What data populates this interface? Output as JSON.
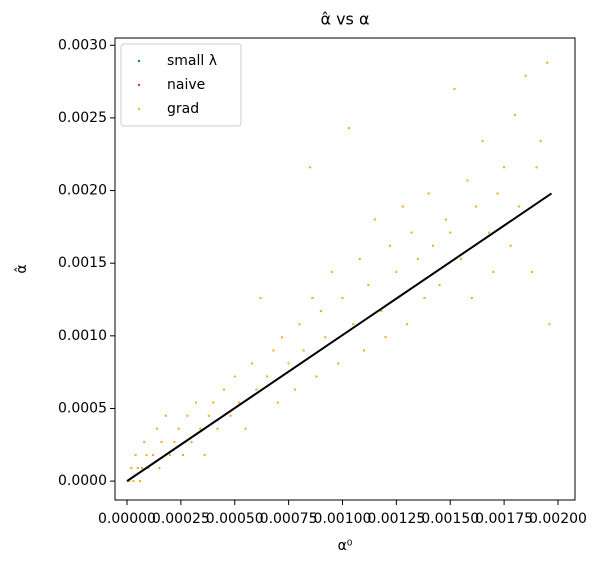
{
  "chart_data": {
    "type": "scatter",
    "title": "α̂ vs α",
    "xlabel": "α⁰",
    "ylabel": "α̂",
    "x": [
      1e-05,
      2e-05,
      3e-05,
      4e-05,
      5e-05,
      6e-05,
      7e-05,
      8e-05,
      9e-05,
      0.0001,
      0.00012,
      0.00014,
      0.00015,
      0.00016,
      0.00018,
      0.0002,
      0.00022,
      0.00024,
      0.00026,
      0.00028,
      0.0003,
      0.00032,
      0.00034,
      0.00036,
      0.00038,
      0.0004,
      0.00042,
      0.00045,
      0.00048,
      0.0005,
      0.00052,
      0.00055,
      0.00058,
      0.0006,
      0.00062,
      0.00065,
      0.00068,
      0.0007,
      0.00072,
      0.00075,
      0.00078,
      0.0008,
      0.00082,
      0.00085,
      0.00086,
      0.00088,
      0.0009,
      0.00092,
      0.00095,
      0.00098,
      0.001,
      0.00103,
      0.00105,
      0.00108,
      0.0011,
      0.00112,
      0.00115,
      0.00118,
      0.0012,
      0.00122,
      0.00125,
      0.00128,
      0.0013,
      0.00132,
      0.00135,
      0.00138,
      0.0014,
      0.00142,
      0.00145,
      0.00148,
      0.0015,
      0.00152,
      0.00155,
      0.00158,
      0.0016,
      0.00162,
      0.00165,
      0.00168,
      0.0017,
      0.00172,
      0.00175,
      0.00178,
      0.0018,
      0.00182,
      0.00185,
      0.00188,
      0.0019,
      0.00192,
      0.00195,
      0.00196
    ],
    "series": [
      {
        "name": "small λ",
        "color": "#1f77b4",
        "values": [
          0,
          9e-05,
          0,
          0.00018,
          9e-05,
          0,
          9e-05,
          0.00027,
          0.00018,
          9e-05,
          0.00018,
          0.00036,
          9e-05,
          0.00027,
          0.00045,
          0.00018,
          0.00027,
          0.00036,
          0.00018,
          0.00045,
          0.00027,
          0.00054,
          0.00036,
          0.00018,
          0.00045,
          0.00054,
          0.00036,
          0.00063,
          0.00045,
          0.00072,
          0.00054,
          0.00036,
          0.00081,
          0.00063,
          0.00126,
          0.00072,
          0.0009,
          0.00054,
          0.00099,
          0.00081,
          0.00063,
          0.00108,
          0.0009,
          0.00216,
          0.00126,
          0.00072,
          0.00117,
          0.00099,
          0.00144,
          0.00081,
          0.00126,
          0.00243,
          0.00108,
          0.00153,
          0.0009,
          0.00135,
          0.0018,
          0.00117,
          0.00099,
          0.00162,
          0.00144,
          0.00189,
          0.00108,
          0.00171,
          0.00153,
          0.00126,
          0.00198,
          0.00162,
          0.00135,
          0.0018,
          0.00171,
          0.0027,
          0.00153,
          0.00207,
          0.00126,
          0.00189,
          0.00234,
          0.00171,
          0.00144,
          0.00198,
          0.00216,
          0.00162,
          0.00252,
          0.00189,
          0.00279,
          0.00144,
          0.00216,
          0.00234,
          0.00288,
          0.00108
        ]
      },
      {
        "name": "naive",
        "color": "#e8322a",
        "values": [
          0,
          9e-05,
          0,
          0.00018,
          9e-05,
          0,
          9e-05,
          0.00027,
          0.00018,
          9e-05,
          0.00018,
          0.00036,
          9e-05,
          0.00027,
          0.00045,
          0.00018,
          0.00027,
          0.00036,
          0.00018,
          0.00045,
          0.00027,
          0.00054,
          0.00036,
          0.00018,
          0.00045,
          0.00054,
          0.00036,
          0.00063,
          0.00045,
          0.00072,
          0.00054,
          0.00036,
          0.00081,
          0.00063,
          0.00126,
          0.00072,
          0.0009,
          0.00054,
          0.00099,
          0.00081,
          0.00063,
          0.00108,
          0.0009,
          0.00216,
          0.00126,
          0.00072,
          0.00117,
          0.00099,
          0.00144,
          0.00081,
          0.00126,
          0.00243,
          0.00108,
          0.00153,
          0.0009,
          0.00135,
          0.0018,
          0.00117,
          0.00099,
          0.00162,
          0.00144,
          0.00189,
          0.00108,
          0.00171,
          0.00153,
          0.00126,
          0.00198,
          0.00162,
          0.00135,
          0.0018,
          0.00171,
          0.0027,
          0.00153,
          0.00207,
          0.00126,
          0.00189,
          0.00234,
          0.00171,
          0.00144,
          0.00198,
          0.00216,
          0.00162,
          0.00252,
          0.00189,
          0.00279,
          0.00144,
          0.00216,
          0.00234,
          0.00288,
          0.00108
        ]
      },
      {
        "name": "grad",
        "color": "#ffbf00",
        "values": [
          0,
          9e-05,
          0,
          0.00018,
          9e-05,
          0,
          9e-05,
          0.00027,
          0.00018,
          9e-05,
          0.00018,
          0.00036,
          9e-05,
          0.00027,
          0.00045,
          0.00018,
          0.00027,
          0.00036,
          0.00018,
          0.00045,
          0.00027,
          0.00054,
          0.00036,
          0.00018,
          0.00045,
          0.00054,
          0.00036,
          0.00063,
          0.00045,
          0.00072,
          0.00054,
          0.00036,
          0.00081,
          0.00063,
          0.00126,
          0.00072,
          0.0009,
          0.00054,
          0.00099,
          0.00081,
          0.00063,
          0.00108,
          0.0009,
          0.00216,
          0.00126,
          0.00072,
          0.00117,
          0.00099,
          0.00144,
          0.00081,
          0.00126,
          0.00243,
          0.00108,
          0.00153,
          0.0009,
          0.00135,
          0.0018,
          0.00117,
          0.00099,
          0.00162,
          0.00144,
          0.00189,
          0.00108,
          0.00171,
          0.00153,
          0.00126,
          0.00198,
          0.00162,
          0.00135,
          0.0018,
          0.00171,
          0.0027,
          0.00153,
          0.00207,
          0.00126,
          0.00189,
          0.00234,
          0.00171,
          0.00144,
          0.00198,
          0.00216,
          0.00162,
          0.00252,
          0.00189,
          0.00279,
          0.00144,
          0.00216,
          0.00234,
          0.00288,
          0.00108
        ]
      }
    ],
    "reference_line": {
      "x": [
        0,
        0.00197
      ],
      "y": [
        0,
        0.00198
      ],
      "color": "#000000"
    },
    "xlim": [
      -5.57e-05,
      0.002079
    ],
    "ylim": [
      -0.00013,
      0.00305
    ],
    "xticks": [
      {
        "value": 0,
        "label": "0.00000"
      },
      {
        "value": 0.00025,
        "label": "0.00025"
      },
      {
        "value": 0.0005,
        "label": "0.00050"
      },
      {
        "value": 0.00075,
        "label": "0.00075"
      },
      {
        "value": 0.001,
        "label": "0.00100"
      },
      {
        "value": 0.00125,
        "label": "0.00125"
      },
      {
        "value": 0.0015,
        "label": "0.00150"
      },
      {
        "value": 0.00175,
        "label": "0.00175"
      },
      {
        "value": 0.002,
        "label": "0.00200"
      }
    ],
    "yticks": [
      {
        "value": 0,
        "label": "0.0000"
      },
      {
        "value": 0.0005,
        "label": "0.0005"
      },
      {
        "value": 0.001,
        "label": "0.0010"
      },
      {
        "value": 0.0015,
        "label": "0.0015"
      },
      {
        "value": 0.002,
        "label": "0.0020"
      },
      {
        "value": 0.0025,
        "label": "0.0025"
      },
      {
        "value": 0.003,
        "label": "0.0030"
      }
    ],
    "legend": "upper left"
  }
}
